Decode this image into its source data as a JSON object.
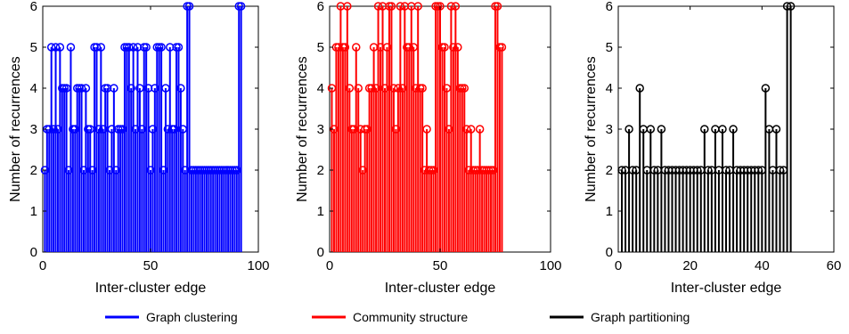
{
  "chart_data": [
    {
      "type": "stem",
      "color": "#0000ff",
      "xlabel": "Inter-cluster edge",
      "ylabel": "Number of recurrences",
      "xlim": [
        0,
        100
      ],
      "ylim": [
        0,
        6
      ],
      "xticks": [
        0,
        50,
        100
      ],
      "yticks": [
        0,
        1,
        2,
        3,
        4,
        5,
        6
      ],
      "x": [
        1,
        2,
        3,
        4,
        5,
        6,
        7,
        8,
        9,
        10,
        11,
        12,
        13,
        14,
        15,
        16,
        17,
        18,
        19,
        20,
        21,
        22,
        23,
        24,
        25,
        26,
        27,
        28,
        29,
        30,
        31,
        32,
        33,
        34,
        35,
        36,
        37,
        38,
        39,
        40,
        41,
        42,
        43,
        44,
        45,
        46,
        47,
        48,
        49,
        50,
        51,
        52,
        53,
        54,
        55,
        56,
        57,
        58,
        59,
        60,
        61,
        62,
        63,
        64,
        65,
        66,
        67,
        68,
        69,
        70,
        71,
        72,
        73,
        74,
        75,
        76,
        77,
        78,
        79,
        80,
        81,
        82,
        83,
        84,
        85,
        86,
        87,
        88,
        89,
        90,
        91,
        92
      ],
      "values": [
        2,
        3,
        3,
        5,
        3,
        5,
        3,
        5,
        4,
        4,
        4,
        2,
        5,
        3,
        3,
        4,
        4,
        4,
        2,
        4,
        3,
        3,
        2,
        5,
        5,
        3,
        5,
        3,
        4,
        4,
        2,
        3,
        4,
        2,
        3,
        3,
        3,
        5,
        5,
        5,
        4,
        5,
        3,
        5,
        4,
        3,
        5,
        5,
        4,
        2,
        3,
        4,
        5,
        5,
        5,
        2,
        4,
        3,
        5,
        3,
        3,
        5,
        5,
        4,
        3,
        2,
        6,
        6,
        2,
        2,
        2,
        2,
        2,
        2,
        2,
        2,
        2,
        2,
        2,
        2,
        2,
        2,
        2,
        2,
        2,
        2,
        2,
        2,
        2,
        2,
        6,
        6
      ]
    },
    {
      "type": "stem",
      "color": "#ff0000",
      "xlabel": "Inter-cluster edge",
      "ylabel": "Number of recurrences",
      "xlim": [
        0,
        100
      ],
      "ylim": [
        0,
        6
      ],
      "xticks": [
        0,
        50,
        100
      ],
      "yticks": [
        0,
        1,
        2,
        3,
        4,
        5,
        6
      ],
      "x": [
        1,
        2,
        3,
        4,
        5,
        6,
        7,
        8,
        9,
        10,
        11,
        12,
        13,
        14,
        15,
        16,
        17,
        18,
        19,
        20,
        21,
        22,
        23,
        24,
        25,
        26,
        27,
        28,
        29,
        30,
        31,
        32,
        33,
        34,
        35,
        36,
        37,
        38,
        39,
        40,
        41,
        42,
        43,
        44,
        45,
        46,
        47,
        48,
        49,
        50,
        51,
        52,
        53,
        54,
        55,
        56,
        57,
        58,
        59,
        60,
        61,
        62,
        63,
        64,
        65,
        66,
        67,
        68,
        69,
        70,
        71,
        72,
        73,
        74,
        75,
        76,
        77,
        78
      ],
      "values": [
        4,
        3,
        5,
        5,
        6,
        5,
        5,
        6,
        4,
        3,
        3,
        5,
        4,
        3,
        2,
        3,
        3,
        4,
        4,
        5,
        4,
        6,
        5,
        6,
        4,
        5,
        6,
        6,
        4,
        3,
        4,
        6,
        4,
        6,
        5,
        5,
        6,
        5,
        4,
        6,
        4,
        4,
        2,
        3,
        2,
        2,
        2,
        6,
        6,
        6,
        5,
        5,
        4,
        3,
        6,
        5,
        6,
        5,
        4,
        4,
        4,
        3,
        2,
        3,
        2,
        2,
        2,
        3,
        2,
        2,
        2,
        2,
        2,
        2,
        6,
        6,
        5,
        5
      ]
    },
    {
      "type": "stem",
      "color": "#000000",
      "xlabel": "Inter-cluster edge",
      "ylabel": "Number of recurrences",
      "xlim": [
        0,
        60
      ],
      "ylim": [
        0,
        6
      ],
      "xticks": [
        0,
        20,
        40,
        60
      ],
      "yticks": [
        0,
        1,
        2,
        3,
        4,
        5,
        6
      ],
      "x": [
        1,
        2,
        3,
        4,
        5,
        6,
        7,
        8,
        9,
        10,
        11,
        12,
        13,
        14,
        15,
        16,
        17,
        18,
        19,
        20,
        21,
        22,
        23,
        24,
        25,
        26,
        27,
        28,
        29,
        30,
        31,
        32,
        33,
        34,
        35,
        36,
        37,
        38,
        39,
        40,
        41,
        42,
        43,
        44,
        45,
        46,
        47,
        48
      ],
      "values": [
        2,
        2,
        3,
        2,
        2,
        4,
        3,
        2,
        3,
        2,
        2,
        3,
        2,
        2,
        2,
        2,
        2,
        2,
        2,
        2,
        2,
        2,
        2,
        3,
        2,
        2,
        3,
        2,
        3,
        2,
        2,
        3,
        2,
        2,
        2,
        2,
        2,
        2,
        2,
        2,
        4,
        3,
        2,
        3,
        2,
        2,
        6,
        6
      ]
    }
  ],
  "legend": [
    {
      "label": "Graph clustering",
      "color": "#0000ff"
    },
    {
      "label": "Community structure",
      "color": "#ff0000"
    },
    {
      "label": "Graph partitioning",
      "color": "#000000"
    }
  ]
}
